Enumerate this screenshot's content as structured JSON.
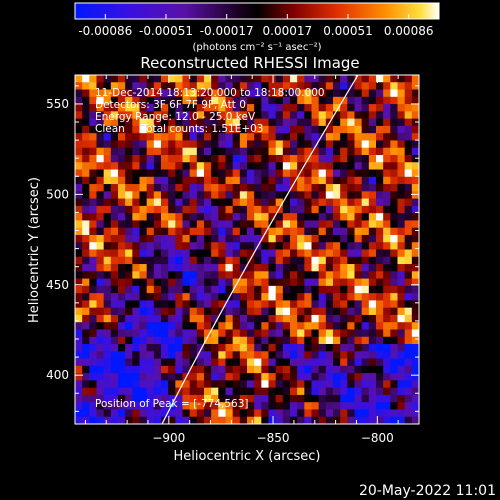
{
  "chart_data": {
    "type": "heatmap",
    "title": "Reconstructed RHESSI Image",
    "xlabel": "Heliocentric X (arcsec)",
    "ylabel": "Heliocentric Y (arcsec)",
    "xlim": [
      -945,
      -780
    ],
    "ylim": [
      373,
      566
    ],
    "xticks": [
      -900,
      -850,
      -800
    ],
    "yticks": [
      400,
      450,
      500,
      550
    ],
    "colorbar": {
      "ticks": [
        "-0.00086",
        "-0.00051",
        "-0.00017",
        "0.00017",
        "0.00051",
        "0.00086"
      ],
      "unit_label": "(photons cm⁻² s⁻¹ asec⁻²)",
      "range": [
        -0.00086,
        0.00086
      ],
      "colormap": "blue-purple-black-red-orange-yellow-white"
    },
    "annotations": {
      "time": "11-Dec-2014 18:13:20.000 to 18:18:00.000",
      "detectors": "Detectors: 3F 6F 7F 9F, Att 0",
      "energy": "Energy Range: 12.0 - 25.0 keV",
      "method": "Clean     Total counts: 1.51E+03",
      "peak": "Position of Peak = [-774,563]"
    },
    "limb": "white curve marking solar limb"
  },
  "footer": {
    "timestamp": "20-May-2022 11:01"
  }
}
